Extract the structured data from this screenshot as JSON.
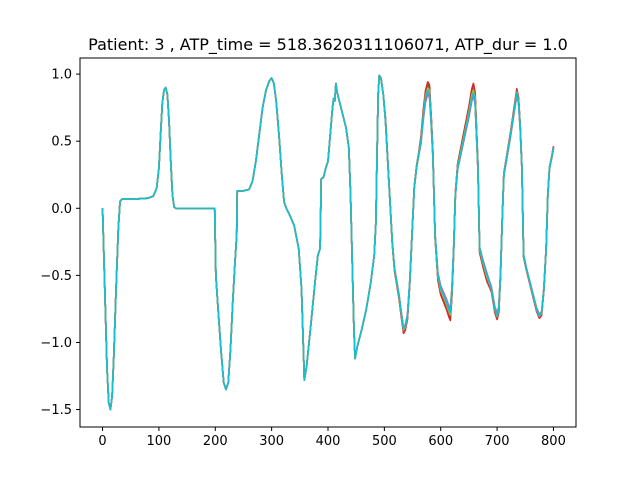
{
  "chart_data": {
    "type": "line",
    "title": "Patient: 3 , ATP_time = 518.3620311106071, ATP_dur = 1.0",
    "xlabel": "",
    "ylabel": "",
    "xlim": [
      -40,
      840
    ],
    "ylim": [
      -1.63,
      1.12
    ],
    "xticks": [
      0,
      100,
      200,
      300,
      400,
      500,
      600,
      700,
      800
    ],
    "xtick_labels": [
      "0",
      "100",
      "200",
      "300",
      "400",
      "500",
      "600",
      "700",
      "800"
    ],
    "yticks": [
      -1.5,
      -1.0,
      -0.5,
      0.0,
      0.5,
      1.0
    ],
    "ytick_labels": [
      "−1.5",
      "−1.0",
      "−0.5",
      "0.0",
      "0.5",
      "1.0"
    ],
    "grid": false,
    "base_curve": [
      [
        0,
        0.0
      ],
      [
        2,
        -0.3
      ],
      [
        5,
        -0.75
      ],
      [
        8,
        -1.2
      ],
      [
        11,
        -1.45
      ],
      [
        14,
        -1.5
      ],
      [
        17,
        -1.4
      ],
      [
        20,
        -1.1
      ],
      [
        24,
        -0.6
      ],
      [
        28,
        -0.15
      ],
      [
        31,
        0.05
      ],
      [
        35,
        0.07
      ],
      [
        40,
        0.07
      ],
      [
        60,
        0.07
      ],
      [
        80,
        0.075
      ],
      [
        90,
        0.09
      ],
      [
        96,
        0.15
      ],
      [
        100,
        0.3
      ],
      [
        103,
        0.55
      ],
      [
        106,
        0.78
      ],
      [
        109,
        0.88
      ],
      [
        112,
        0.9
      ],
      [
        115,
        0.85
      ],
      [
        118,
        0.65
      ],
      [
        121,
        0.35
      ],
      [
        124,
        0.1
      ],
      [
        127,
        0.01
      ],
      [
        130,
        0.0
      ],
      [
        150,
        0.0
      ],
      [
        180,
        0.0
      ],
      [
        199,
        0.0
      ],
      [
        201,
        -0.5
      ],
      [
        205,
        -0.75
      ],
      [
        210,
        -1.05
      ],
      [
        215,
        -1.3
      ],
      [
        219,
        -1.35
      ],
      [
        223,
        -1.3
      ],
      [
        227,
        -1.05
      ],
      [
        231,
        -0.7
      ],
      [
        235,
        -0.4
      ],
      [
        238,
        -0.2
      ],
      [
        239,
        0.13
      ],
      [
        242,
        0.13
      ],
      [
        250,
        0.13
      ],
      [
        260,
        0.14
      ],
      [
        266,
        0.2
      ],
      [
        272,
        0.35
      ],
      [
        278,
        0.55
      ],
      [
        284,
        0.75
      ],
      [
        290,
        0.88
      ],
      [
        296,
        0.95
      ],
      [
        300,
        0.97
      ],
      [
        304,
        0.93
      ],
      [
        308,
        0.8
      ],
      [
        313,
        0.55
      ],
      [
        318,
        0.25
      ],
      [
        322,
        0.05
      ],
      [
        326,
        0.0
      ],
      [
        332,
        -0.05
      ],
      [
        340,
        -0.13
      ],
      [
        348,
        -0.3
      ],
      [
        353,
        -0.6
      ],
      [
        356,
        -1.0
      ],
      [
        358,
        -1.28
      ],
      [
        362,
        -1.18
      ],
      [
        370,
        -0.85
      ],
      [
        377,
        -0.55
      ],
      [
        382,
        -0.35
      ],
      [
        386,
        -0.3
      ],
      [
        388,
        0.22
      ],
      [
        392,
        0.23
      ],
      [
        396,
        0.3
      ],
      [
        400,
        0.35
      ],
      [
        404,
        0.55
      ],
      [
        408,
        0.75
      ],
      [
        410,
        0.82
      ],
      [
        412,
        0.8
      ],
      [
        414,
        0.93
      ],
      [
        416,
        0.87
      ],
      [
        420,
        0.8
      ],
      [
        426,
        0.7
      ],
      [
        432,
        0.6
      ],
      [
        437,
        0.45
      ],
      [
        440,
        0.1
      ],
      [
        443,
        -0.4
      ],
      [
        446,
        -0.9
      ],
      [
        448,
        -1.12
      ],
      [
        452,
        -1.03
      ],
      [
        460,
        -0.9
      ],
      [
        468,
        -0.75
      ],
      [
        476,
        -0.55
      ],
      [
        482,
        -0.35
      ],
      [
        485,
        -0.1
      ],
      [
        487,
        0.4
      ],
      [
        489,
        0.85
      ],
      [
        491,
        0.99
      ],
      [
        494,
        0.97
      ],
      [
        498,
        0.85
      ],
      [
        502,
        0.65
      ],
      [
        506,
        0.35
      ],
      [
        510,
        0.05
      ],
      [
        514,
        -0.25
      ],
      [
        518,
        -0.45
      ],
      [
        522,
        -0.55
      ],
      [
        526,
        -0.65
      ],
      [
        530,
        -0.78
      ],
      [
        534,
        -0.9
      ],
      [
        537,
        -0.88
      ],
      [
        541,
        -0.8
      ],
      [
        545,
        -0.55
      ],
      [
        549,
        -0.2
      ],
      [
        553,
        0.15
      ],
      [
        557,
        0.3
      ],
      [
        561,
        0.4
      ],
      [
        565,
        0.5
      ],
      [
        569,
        0.68
      ],
      [
        573,
        0.82
      ],
      [
        577,
        0.88
      ],
      [
        580,
        0.86
      ],
      [
        583,
        0.65
      ],
      [
        586,
        0.4
      ],
      [
        590,
        -0.2
      ],
      [
        595,
        -0.5
      ],
      [
        600,
        -0.6
      ],
      [
        605,
        -0.65
      ],
      [
        610,
        -0.7
      ],
      [
        614,
        -0.75
      ],
      [
        617,
        -0.78
      ],
      [
        620,
        -0.6
      ],
      [
        623,
        -0.3
      ],
      [
        626,
        0.1
      ],
      [
        630,
        0.3
      ],
      [
        635,
        0.4
      ],
      [
        640,
        0.5
      ],
      [
        645,
        0.6
      ],
      [
        650,
        0.7
      ],
      [
        655,
        0.82
      ],
      [
        658,
        0.86
      ],
      [
        661,
        0.8
      ],
      [
        663,
        0.6
      ],
      [
        666,
        0.3
      ],
      [
        669,
        -0.3
      ],
      [
        675,
        -0.4
      ],
      [
        682,
        -0.5
      ],
      [
        690,
        -0.6
      ],
      [
        696,
        -0.75
      ],
      [
        700,
        -0.8
      ],
      [
        703,
        -0.75
      ],
      [
        706,
        -0.5
      ],
      [
        709,
        -0.1
      ],
      [
        712,
        0.25
      ],
      [
        718,
        0.4
      ],
      [
        724,
        0.55
      ],
      [
        730,
        0.72
      ],
      [
        735,
        0.86
      ],
      [
        738,
        0.8
      ],
      [
        741,
        0.6
      ],
      [
        744,
        0.3
      ],
      [
        747,
        -0.35
      ],
      [
        752,
        -0.45
      ],
      [
        758,
        -0.55
      ],
      [
        764,
        -0.65
      ],
      [
        770,
        -0.75
      ],
      [
        775,
        -0.8
      ],
      [
        779,
        -0.78
      ],
      [
        783,
        -0.6
      ],
      [
        787,
        -0.3
      ],
      [
        790,
        0.1
      ],
      [
        793,
        0.3
      ],
      [
        797,
        0.38
      ],
      [
        800,
        0.45
      ]
    ],
    "series": [
      {
        "color": "#1f77b4",
        "dev": [
          0.01,
          0.01,
          -0.02,
          0.0,
          0.005
        ]
      },
      {
        "color": "#ff7f0e",
        "dev": [
          0.02,
          0.03,
          0.04,
          0.02,
          0.01
        ]
      },
      {
        "color": "#2ca02c",
        "dev": [
          0.015,
          0.04,
          0.05,
          0.01,
          0.005
        ]
      },
      {
        "color": "#d62728",
        "dev": [
          0.03,
          0.06,
          0.07,
          0.03,
          0.02
        ]
      },
      {
        "color": "#9467bd",
        "dev": [
          -0.01,
          -0.03,
          -0.02,
          -0.02,
          -0.01
        ]
      },
      {
        "color": "#8c564b",
        "dev": [
          0.0,
          0.02,
          0.03,
          0.015,
          0.0
        ]
      },
      {
        "color": "#e377c2",
        "dev": [
          -0.005,
          -0.01,
          0.0,
          -0.01,
          0.005
        ]
      },
      {
        "color": "#7f7f7f",
        "dev": [
          0.01,
          0.0,
          0.01,
          0.0,
          -0.005
        ]
      },
      {
        "color": "#bcbd22",
        "dev": [
          0.005,
          0.015,
          0.02,
          0.005,
          0.0
        ]
      },
      {
        "color": "#17becf",
        "dev": [
          0.0,
          0.0,
          0.0,
          0.0,
          0.0
        ]
      }
    ],
    "divergence_start_x": 500
  }
}
